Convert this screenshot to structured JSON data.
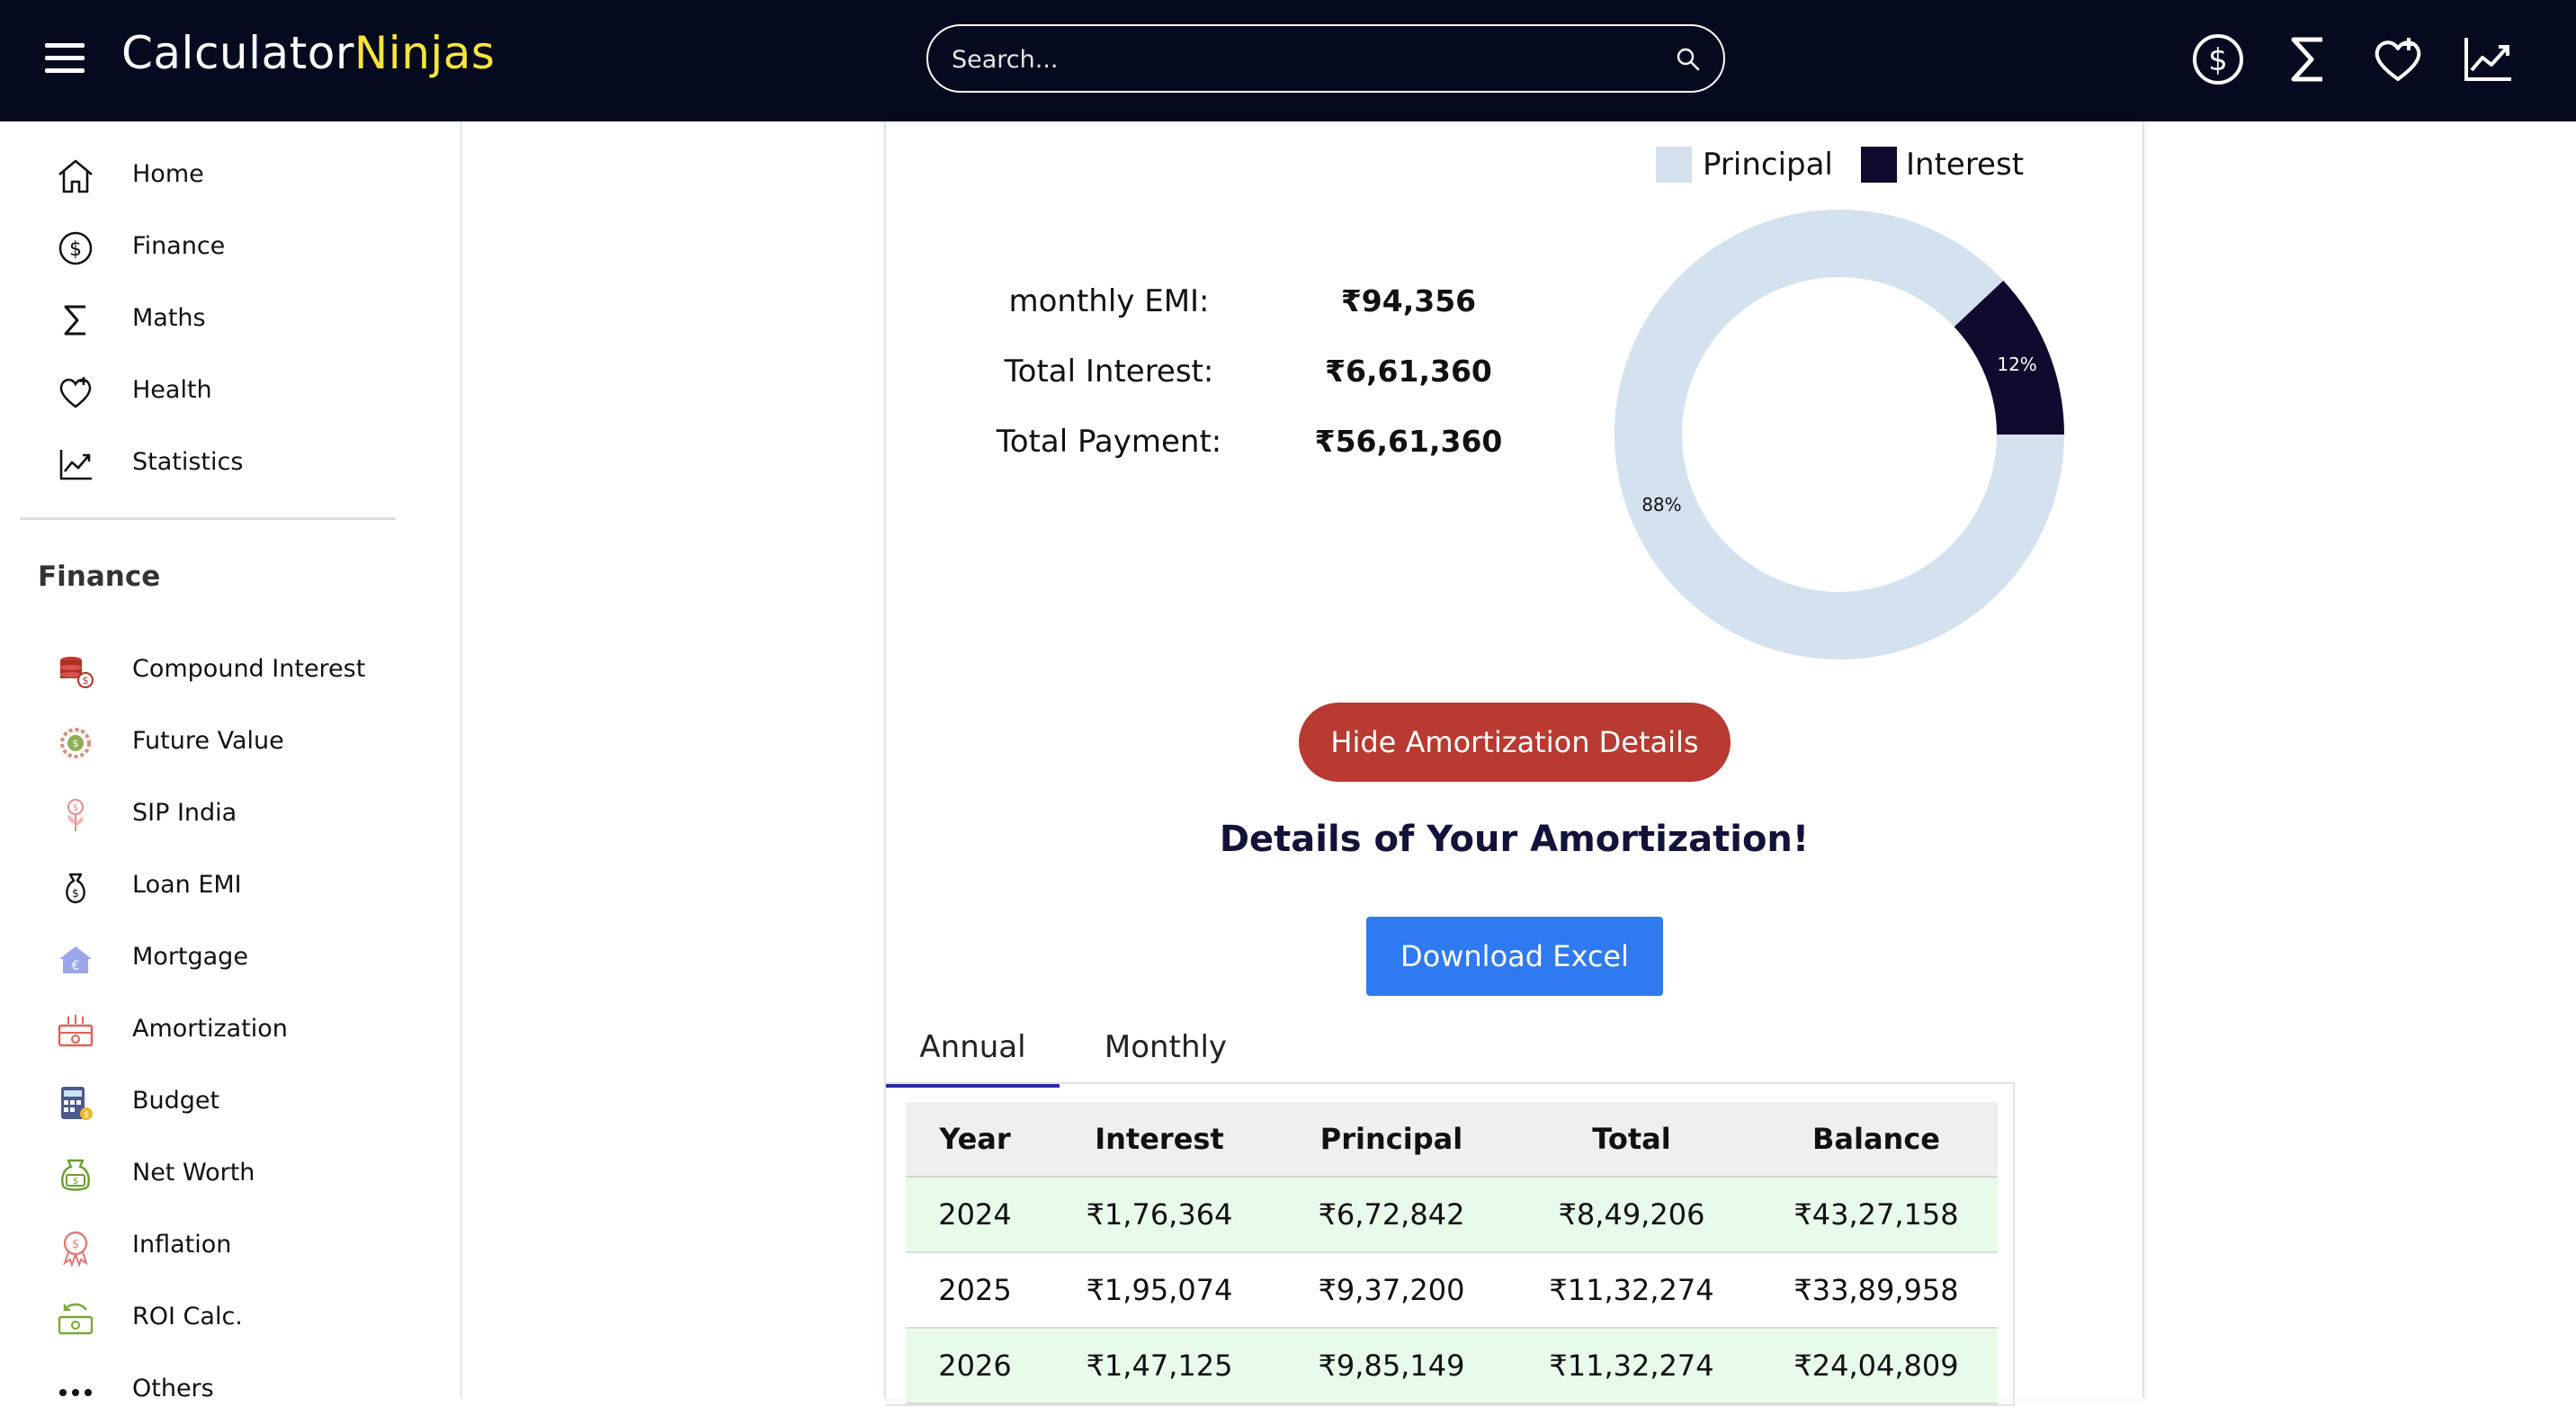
{
  "header": {
    "logo_main": "Calculator",
    "logo_accent": "Ninjas",
    "search_placeholder": "Search...",
    "icons": [
      "dollar-icon",
      "sigma-icon",
      "heart-plus-icon",
      "chart-line-icon"
    ]
  },
  "sidebar": {
    "top_items": [
      {
        "label": "Home",
        "icon": "home-icon"
      },
      {
        "label": "Finance",
        "icon": "dollar-icon"
      },
      {
        "label": "Maths",
        "icon": "sigma-icon"
      },
      {
        "label": "Health",
        "icon": "heart-plus-icon"
      },
      {
        "label": "Statistics",
        "icon": "chart-line-icon"
      }
    ],
    "section_title": "Finance",
    "finance_items": [
      {
        "label": "Compound Interest",
        "icon": "coins-stack-icon"
      },
      {
        "label": "Future Value",
        "icon": "coin-gear-icon"
      },
      {
        "label": "SIP India",
        "icon": "money-plant-icon"
      },
      {
        "label": "Loan EMI",
        "icon": "money-bag-icon"
      },
      {
        "label": "Mortgage",
        "icon": "house-euro-icon"
      },
      {
        "label": "Amortization",
        "icon": "cash-register-icon"
      },
      {
        "label": "Budget",
        "icon": "calculator-icon"
      },
      {
        "label": "Net Worth",
        "icon": "money-bag-dollar-icon"
      },
      {
        "label": "Inflation",
        "icon": "inflation-coin-icon"
      },
      {
        "label": "ROI Calc.",
        "icon": "roi-cash-icon"
      },
      {
        "label": "Others",
        "icon": "more-dots-icon"
      }
    ]
  },
  "results": {
    "legend": [
      {
        "label": "Principal",
        "color": "#d4e1ee"
      },
      {
        "label": "Interest",
        "color": "#120a2e"
      }
    ],
    "stats": [
      {
        "label": "monthly EMI:",
        "value": "₹94,356"
      },
      {
        "label": "Total Interest:",
        "value": "₹6,61,360"
      },
      {
        "label": "Total Payment:",
        "value": "₹56,61,360"
      }
    ]
  },
  "chart_data": {
    "type": "pie",
    "categories": [
      "Principal",
      "Interest"
    ],
    "values": [
      88,
      12
    ],
    "labels": [
      "88%",
      "12%"
    ],
    "colors": [
      "#d4e1ee",
      "#120a2e"
    ],
    "donut": true
  },
  "actions": {
    "hide_label": "Hide Amortization Details",
    "details_title": "Details of Your Amortization!",
    "excel_label": "Download Excel",
    "tabs": [
      "Annual",
      "Monthly"
    ]
  },
  "table": {
    "headers": [
      "Year",
      "Interest",
      "Principal",
      "Total",
      "Balance"
    ],
    "rows": [
      [
        "2024",
        "₹1,76,364",
        "₹6,72,842",
        "₹8,49,206",
        "₹43,27,158"
      ],
      [
        "2025",
        "₹1,95,074",
        "₹9,37,200",
        "₹11,32,274",
        "₹33,89,958"
      ],
      [
        "2026",
        "₹1,47,125",
        "₹9,85,149",
        "₹11,32,274",
        "₹24,04,809"
      ]
    ]
  },
  "colors": {
    "topbar": "#050a1f",
    "accent_logo": "#f7e53a",
    "hide_button": "#b83a30",
    "excel_button": "#2f7af0",
    "tab_underline": "#2b2ba6",
    "row_highlight": "#e8fbea"
  }
}
